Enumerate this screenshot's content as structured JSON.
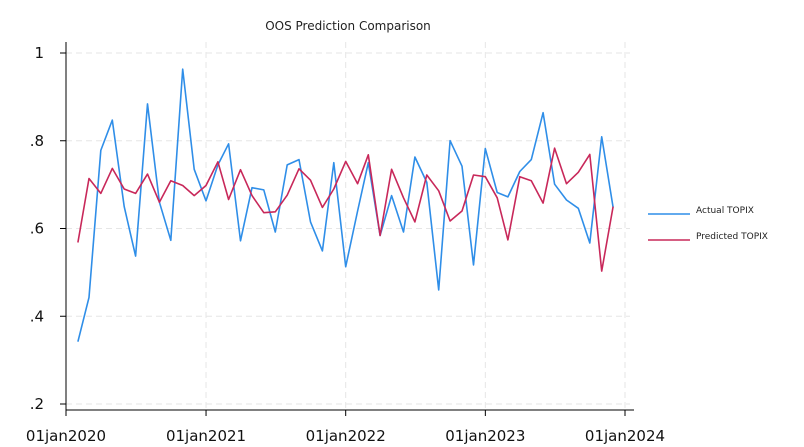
{
  "chart_data": {
    "type": "line",
    "title": "OOS Prediction Comparison",
    "xlabel": "",
    "ylabel": "",
    "ylim": [
      0.2,
      1.0
    ],
    "xlim": [
      "2020-01-01",
      "2024-01-01"
    ],
    "yticks": [
      {
        "value": 0.2,
        "label": ".2"
      },
      {
        "value": 0.4,
        "label": ".4"
      },
      {
        "value": 0.6,
        "label": ".6"
      },
      {
        "value": 0.8,
        "label": ".8"
      },
      {
        "value": 1.0,
        "label": "1"
      }
    ],
    "xticks": [
      {
        "value": "2020-01-01",
        "label": "01jan2020"
      },
      {
        "value": "2021-01-01",
        "label": "01jan2021"
      },
      {
        "value": "2022-01-01",
        "label": "01jan2022"
      },
      {
        "value": "2023-01-01",
        "label": "01jan2023"
      },
      {
        "value": "2024-01-01",
        "label": "01jan2024"
      }
    ],
    "grid": true,
    "legend_position": "right",
    "x": [
      "2020-02-01",
      "2020-03-01",
      "2020-04-01",
      "2020-05-01",
      "2020-06-01",
      "2020-07-01",
      "2020-08-01",
      "2020-09-01",
      "2020-10-01",
      "2020-11-01",
      "2020-12-01",
      "2021-01-01",
      "2021-02-01",
      "2021-03-01",
      "2021-04-01",
      "2021-05-01",
      "2021-06-01",
      "2021-07-01",
      "2021-08-01",
      "2021-09-01",
      "2021-10-01",
      "2021-11-01",
      "2021-12-01",
      "2022-01-01",
      "2022-02-01",
      "2022-03-01",
      "2022-04-01",
      "2022-05-01",
      "2022-06-01",
      "2022-07-01",
      "2022-08-01",
      "2022-09-01",
      "2022-10-01",
      "2022-11-01",
      "2022-12-01",
      "2023-01-01",
      "2023-02-01",
      "2023-03-01",
      "2023-04-01",
      "2023-05-01",
      "2023-06-01",
      "2023-07-01",
      "2023-08-01",
      "2023-09-01",
      "2023-10-01",
      "2023-11-01",
      "2023-12-01"
    ],
    "series": [
      {
        "name": "Actual TOPIX",
        "color": "#2f8ee8",
        "values": [
          0.342,
          0.443,
          0.778,
          0.847,
          0.65,
          0.537,
          0.884,
          0.66,
          0.573,
          0.963,
          0.735,
          0.663,
          0.745,
          0.793,
          0.572,
          0.693,
          0.688,
          0.592,
          0.745,
          0.757,
          0.615,
          0.549,
          0.75,
          0.513,
          0.64,
          0.75,
          0.584,
          0.675,
          0.592,
          0.763,
          0.705,
          0.46,
          0.8,
          0.742,
          0.517,
          0.782,
          0.682,
          0.672,
          0.73,
          0.757,
          0.864,
          0.701,
          0.665,
          0.646,
          0.567,
          0.809,
          0.648
        ]
      },
      {
        "name": "Predicted TOPIX",
        "color": "#c8285a",
        "values": [
          0.568,
          0.714,
          0.68,
          0.737,
          0.69,
          0.68,
          0.724,
          0.66,
          0.709,
          0.698,
          0.675,
          0.698,
          0.752,
          0.666,
          0.734,
          0.675,
          0.636,
          0.638,
          0.676,
          0.736,
          0.71,
          0.648,
          0.69,
          0.753,
          0.702,
          0.768,
          0.584,
          0.735,
          0.67,
          0.615,
          0.722,
          0.686,
          0.617,
          0.64,
          0.722,
          0.718,
          0.67,
          0.574,
          0.718,
          0.709,
          0.658,
          0.783,
          0.702,
          0.728,
          0.769,
          0.503,
          0.65
        ]
      }
    ]
  }
}
